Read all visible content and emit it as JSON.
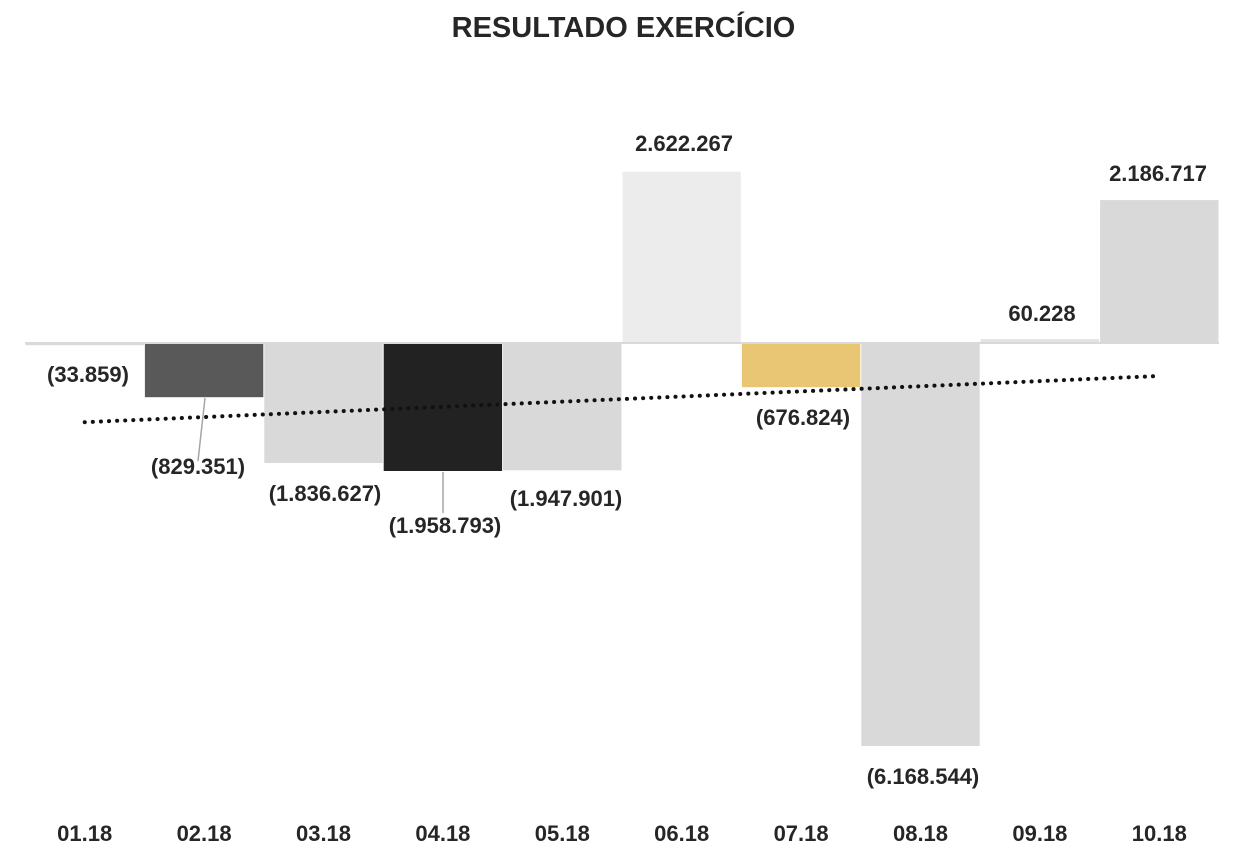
{
  "chart_data": {
    "type": "bar",
    "title": "RESULTADO EXERCÍCIO",
    "categories": [
      "01.18",
      "02.18",
      "03.18",
      "04.18",
      "05.18",
      "06.18",
      "07.18",
      "08.18",
      "09.18",
      "10.18"
    ],
    "values": [
      -33859,
      -829351,
      -1836627,
      -1958793,
      -1947901,
      2622267,
      -676824,
      -6168544,
      60228,
      2186717
    ],
    "labels": [
      "(33.859)",
      "(829.351)",
      "(1.836.627)",
      "(1.958.793)",
      "(1.947.901)",
      "2.622.267",
      "(676.824)",
      "(6.168.544)",
      "60.228",
      "2.186.717"
    ],
    "bar_colors": [
      "#d9d9d9",
      "#595959",
      "#d9d9d9",
      "#222222",
      "#d9d9d9",
      "#ececec",
      "#e8c673",
      "#d9d9d9",
      "#e3e3e3",
      "#d9d9d9"
    ],
    "trendline": {
      "style": "dotted",
      "color": "#111111"
    },
    "ylim": [
      -6300000,
      3300000
    ],
    "xlabel": "",
    "ylabel": "",
    "grid": false,
    "legend": "none"
  }
}
